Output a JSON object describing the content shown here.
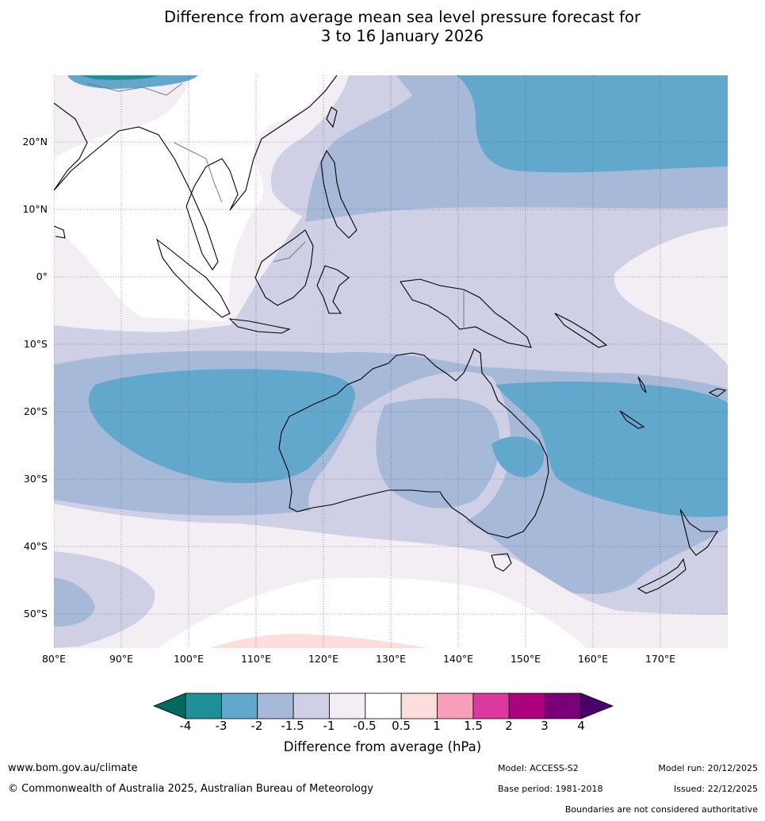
{
  "title": {
    "line1": "Difference from average mean sea level pressure forecast for",
    "line2": "3 to 16 January 2026"
  },
  "map": {
    "type": "filled contour anomaly map",
    "region": "Australia, Maritime Continent and western Pacific",
    "lon_range": [
      80,
      180
    ],
    "lat_range": [
      -55,
      30
    ],
    "lat_labels": [
      "20°N",
      "10°N",
      "0°",
      "10°S",
      "20°S",
      "30°S",
      "40°S",
      "50°S"
    ],
    "lon_labels": [
      "80°E",
      "90°E",
      "100°E",
      "110°E",
      "120°E",
      "130°E",
      "140°E",
      "150°E",
      "160°E",
      "170°E"
    ],
    "anomaly_pattern": [
      {
        "area": "Australia interior and surrounding oceans",
        "range": "-1.5 to -1 hPa"
      },
      {
        "area": "Indian Ocean west of Australia",
        "range": "-3 to -2 hPa"
      },
      {
        "area": "Coral Sea and Tasman Sea",
        "range": "-3 to -2 hPa"
      },
      {
        "area": "North-west Pacific",
        "range": "-3 to -2 hPa"
      },
      {
        "area": "Southern Ocean south of Australia",
        "range": "-1 to 0.5 hPa"
      },
      {
        "area": "Far south near 53°S, 110-125°E",
        "range": "0.5 to 1 hPa"
      }
    ]
  },
  "colorbar": {
    "title": "Difference from average (hPa)",
    "ticks": [
      "-4",
      "-3",
      "-2",
      "-1.5",
      "-1",
      "-0.5",
      "0.5",
      "1",
      "1.5",
      "2",
      "3",
      "4"
    ],
    "colors": {
      "below": "#006a5e",
      "bins": [
        "#1f8f97",
        "#62a8cd",
        "#a7b9d9",
        "#cfd0e5",
        "#f3edf4",
        "#ffffff",
        "#fddedd",
        "#f79ebb",
        "#dd38a0",
        "#ac027d",
        "#7a0077"
      ],
      "above": "#49006a"
    }
  },
  "footer": {
    "website": "www.bom.gov.au/climate",
    "copyright": "© Commonwealth of Australia 2025, Australian Bureau of Meteorology",
    "model": "Model: ACCESS-S2",
    "base_period": "Base period: 1981-2018",
    "model_run": "Model run: 20/12/2025",
    "issued": "Issued: 22/12/2025",
    "disclaimer": "Boundaries are not considered authoritative"
  }
}
